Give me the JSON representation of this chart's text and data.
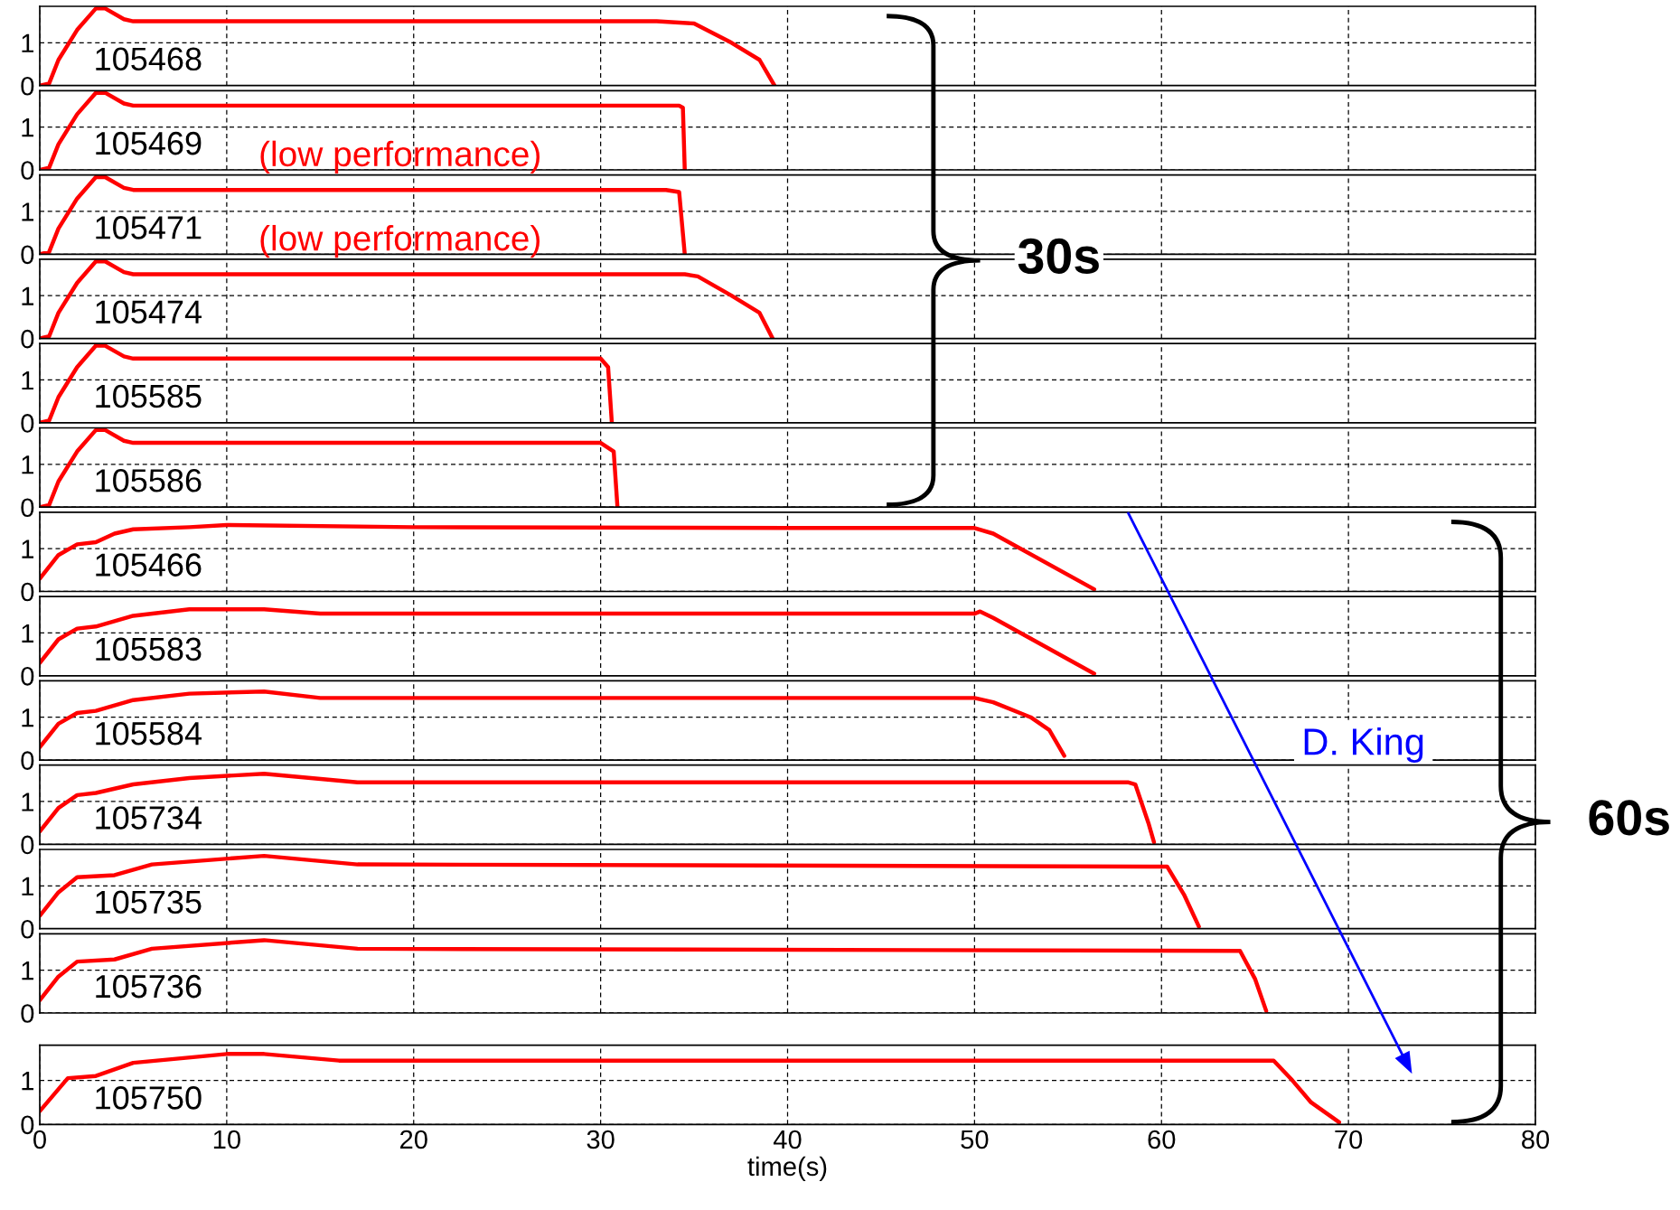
{
  "chart_data": [
    {
      "type": "line",
      "xlim": [
        0,
        80
      ],
      "xticks": [
        0,
        10,
        20,
        30,
        40,
        50,
        60,
        70,
        80
      ],
      "ylim": [
        0,
        1.85
      ],
      "yticks": [
        0,
        1
      ],
      "grid": true,
      "tick_labels": "y",
      "annotations": [
        "30s"
      ],
      "series": [
        {
          "name": "105468",
          "color": "#ff0000",
          "x": [
            0,
            0.5,
            1,
            2,
            3,
            3.5,
            4.5,
            5,
            10,
            20,
            30,
            33,
            35,
            37,
            38.5,
            39.3
          ],
          "values": [
            0,
            0.05,
            0.6,
            1.3,
            1.8,
            1.8,
            1.55,
            1.5,
            1.5,
            1.5,
            1.5,
            1.5,
            1.45,
            1.0,
            0.6,
            0
          ]
        }
      ]
    },
    {
      "type": "line",
      "xlim": [
        0,
        80
      ],
      "xticks": [
        0,
        10,
        20,
        30,
        40,
        50,
        60,
        70,
        80
      ],
      "ylim": [
        0,
        1.85
      ],
      "yticks": [
        0,
        1
      ],
      "grid": true,
      "tick_labels": "y",
      "annotations": [
        "(low performance)"
      ],
      "series": [
        {
          "name": "105469",
          "color": "#ff0000",
          "x": [
            0,
            0.5,
            1,
            2,
            3,
            3.5,
            4.5,
            5,
            10,
            20,
            30,
            34.2,
            34.4,
            34.5
          ],
          "values": [
            0,
            0.05,
            0.6,
            1.3,
            1.8,
            1.8,
            1.55,
            1.5,
            1.5,
            1.5,
            1.5,
            1.5,
            1.45,
            0
          ]
        }
      ]
    },
    {
      "type": "line",
      "xlim": [
        0,
        80
      ],
      "xticks": [
        0,
        10,
        20,
        30,
        40,
        50,
        60,
        70,
        80
      ],
      "ylim": [
        0,
        1.85
      ],
      "yticks": [
        0,
        1
      ],
      "grid": true,
      "tick_labels": "y",
      "annotations": [
        "(low performance)"
      ],
      "series": [
        {
          "name": "105471",
          "color": "#ff0000",
          "x": [
            0,
            0.5,
            1,
            2,
            3,
            3.5,
            4.5,
            5,
            10,
            20,
            30,
            33.5,
            34.2,
            34.5
          ],
          "values": [
            0,
            0.05,
            0.6,
            1.3,
            1.8,
            1.8,
            1.55,
            1.5,
            1.5,
            1.5,
            1.5,
            1.5,
            1.45,
            0
          ]
        }
      ]
    },
    {
      "type": "line",
      "xlim": [
        0,
        80
      ],
      "xticks": [
        0,
        10,
        20,
        30,
        40,
        50,
        60,
        70,
        80
      ],
      "ylim": [
        0,
        1.85
      ],
      "yticks": [
        0,
        1
      ],
      "grid": true,
      "tick_labels": "y",
      "series": [
        {
          "name": "105474",
          "color": "#ff0000",
          "x": [
            0,
            0.5,
            1,
            2,
            3,
            3.5,
            4.5,
            5,
            10,
            20,
            30,
            34.5,
            35.2,
            37,
            38.5,
            39.2
          ],
          "values": [
            0,
            0.05,
            0.6,
            1.3,
            1.8,
            1.8,
            1.55,
            1.5,
            1.5,
            1.5,
            1.5,
            1.5,
            1.45,
            1.0,
            0.6,
            0
          ]
        }
      ]
    },
    {
      "type": "line",
      "xlim": [
        0,
        80
      ],
      "xticks": [
        0,
        10,
        20,
        30,
        40,
        50,
        60,
        70,
        80
      ],
      "ylim": [
        0,
        1.85
      ],
      "yticks": [
        0,
        1
      ],
      "grid": true,
      "tick_labels": "y",
      "series": [
        {
          "name": "105585",
          "color": "#ff0000",
          "x": [
            0,
            0.5,
            1,
            2,
            3,
            3.5,
            4.5,
            5,
            10,
            20,
            30,
            30.4,
            30.6
          ],
          "values": [
            0,
            0.05,
            0.6,
            1.3,
            1.8,
            1.8,
            1.55,
            1.5,
            1.5,
            1.5,
            1.5,
            1.3,
            0
          ]
        }
      ]
    },
    {
      "type": "line",
      "xlim": [
        0,
        80
      ],
      "xticks": [
        0,
        10,
        20,
        30,
        40,
        50,
        60,
        70,
        80
      ],
      "ylim": [
        0,
        1.85
      ],
      "yticks": [
        0,
        1
      ],
      "grid": true,
      "tick_labels": "y",
      "series": [
        {
          "name": "105586",
          "color": "#ff0000",
          "x": [
            0,
            0.5,
            1,
            2,
            3,
            3.5,
            4.5,
            5,
            10,
            20,
            30,
            30.7,
            30.9
          ],
          "values": [
            0,
            0.05,
            0.6,
            1.3,
            1.8,
            1.8,
            1.55,
            1.5,
            1.5,
            1.5,
            1.5,
            1.3,
            0
          ]
        }
      ]
    },
    {
      "type": "line",
      "xlim": [
        0,
        80
      ],
      "xticks": [
        0,
        10,
        20,
        30,
        40,
        50,
        60,
        70,
        80
      ],
      "ylim": [
        0,
        1.85
      ],
      "yticks": [
        0,
        1
      ],
      "grid": true,
      "tick_labels": "y",
      "annotations": [
        "60s"
      ],
      "series": [
        {
          "name": "105466",
          "color": "#ff0000",
          "x": [
            0,
            1,
            2,
            3,
            4,
            5,
            8,
            10,
            20,
            40,
            50,
            51,
            56.4
          ],
          "values": [
            0.3,
            0.85,
            1.1,
            1.15,
            1.35,
            1.45,
            1.5,
            1.55,
            1.5,
            1.48,
            1.48,
            1.35,
            0.05
          ]
        }
      ]
    },
    {
      "type": "line",
      "xlim": [
        0,
        80
      ],
      "xticks": [
        0,
        10,
        20,
        30,
        40,
        50,
        60,
        70,
        80
      ],
      "ylim": [
        0,
        1.85
      ],
      "yticks": [
        0,
        1
      ],
      "grid": true,
      "tick_labels": "y",
      "series": [
        {
          "name": "105583",
          "color": "#ff0000",
          "x": [
            0,
            1,
            2,
            3,
            5,
            8,
            12,
            15,
            50,
            50.3,
            51,
            56.4
          ],
          "values": [
            0.3,
            0.85,
            1.1,
            1.15,
            1.4,
            1.55,
            1.55,
            1.45,
            1.45,
            1.5,
            1.35,
            0.05
          ]
        }
      ]
    },
    {
      "type": "line",
      "xlim": [
        0,
        80
      ],
      "xticks": [
        0,
        10,
        20,
        30,
        40,
        50,
        60,
        70,
        80
      ],
      "ylim": [
        0,
        1.85
      ],
      "yticks": [
        0,
        1
      ],
      "grid": true,
      "tick_labels": "y",
      "annotations": [
        "D. King"
      ],
      "series": [
        {
          "name": "105584",
          "color": "#ff0000",
          "x": [
            0,
            1,
            2,
            3,
            5,
            8,
            12,
            15,
            50,
            51,
            53,
            54,
            54.8
          ],
          "values": [
            0.3,
            0.85,
            1.1,
            1.15,
            1.4,
            1.55,
            1.6,
            1.45,
            1.45,
            1.35,
            1.0,
            0.7,
            0.1
          ]
        }
      ]
    },
    {
      "type": "line",
      "xlim": [
        0,
        80
      ],
      "xticks": [
        0,
        10,
        20,
        30,
        40,
        50,
        60,
        70,
        80
      ],
      "ylim": [
        0,
        1.85
      ],
      "yticks": [
        0,
        1
      ],
      "grid": true,
      "tick_labels": "y",
      "series": [
        {
          "name": "105734",
          "color": "#ff0000",
          "x": [
            0,
            1,
            2,
            3,
            5,
            8,
            12,
            17,
            58.2,
            58.6,
            59.3,
            59.6
          ],
          "values": [
            0.3,
            0.85,
            1.15,
            1.2,
            1.4,
            1.55,
            1.65,
            1.45,
            1.45,
            1.4,
            0.5,
            0.05
          ]
        }
      ]
    },
    {
      "type": "line",
      "xlim": [
        0,
        80
      ],
      "xticks": [
        0,
        10,
        20,
        30,
        40,
        50,
        60,
        70,
        80
      ],
      "ylim": [
        0,
        1.85
      ],
      "yticks": [
        0,
        1
      ],
      "grid": true,
      "tick_labels": "y",
      "series": [
        {
          "name": "105735",
          "color": "#ff0000",
          "x": [
            0,
            1,
            2,
            4,
            6,
            12,
            17,
            60.3,
            61.2,
            62
          ],
          "values": [
            0.3,
            0.85,
            1.2,
            1.25,
            1.5,
            1.7,
            1.5,
            1.45,
            0.8,
            0.05
          ]
        }
      ]
    },
    {
      "type": "line",
      "xlim": [
        0,
        80
      ],
      "xticks": [
        0,
        10,
        20,
        30,
        40,
        50,
        60,
        70,
        80
      ],
      "ylim": [
        0,
        1.85
      ],
      "yticks": [
        0,
        1
      ],
      "grid": true,
      "tick_labels": "y",
      "series": [
        {
          "name": "105736",
          "color": "#ff0000",
          "x": [
            0,
            1,
            2,
            4,
            6,
            12,
            17,
            64.2,
            65,
            65.6
          ],
          "values": [
            0.3,
            0.85,
            1.2,
            1.25,
            1.5,
            1.7,
            1.5,
            1.45,
            0.8,
            0.05
          ]
        }
      ]
    },
    {
      "type": "line",
      "xlim": [
        0,
        80
      ],
      "xticks": [
        0,
        10,
        20,
        30,
        40,
        50,
        60,
        70,
        80
      ],
      "ylim": [
        0,
        1.8
      ],
      "yticks": [
        0,
        1
      ],
      "grid": true,
      "xlabel": "time(s)",
      "series": [
        {
          "name": "105750",
          "color": "#ff0000",
          "x": [
            0,
            1.5,
            3,
            5,
            10,
            12,
            16,
            66,
            67,
            68,
            69.5
          ],
          "values": [
            0.3,
            1.05,
            1.1,
            1.4,
            1.6,
            1.6,
            1.45,
            1.45,
            1.0,
            0.5,
            0.05
          ]
        }
      ]
    }
  ]
}
